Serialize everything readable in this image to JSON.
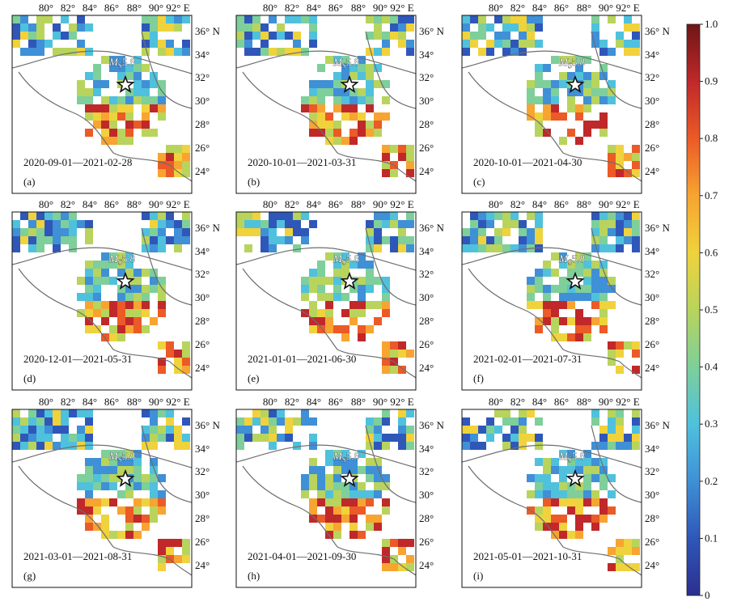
{
  "figure": {
    "lon_ticks": [
      "80°",
      "82°",
      "84°",
      "86°",
      "88°",
      "90°",
      "92° E"
    ],
    "lat_ticks": [
      "36° N",
      "34°",
      "32°",
      "30°",
      "28°",
      "26°",
      "24°"
    ],
    "magnitude_label": "MS5.8",
    "magnitude_main": "M",
    "magnitude_sub": "S",
    "magnitude_value": "5.8",
    "panels": [
      {
        "label": "(a)",
        "date_range": "2020-09-01—2021-02-28"
      },
      {
        "label": "(b)",
        "date_range": "2020-10-01—2021-03-31"
      },
      {
        "label": "(c)",
        "date_range": "2020-10-01—2021-04-30"
      },
      {
        "label": "(d)",
        "date_range": "2020-12-01—2021-05-31"
      },
      {
        "label": "(e)",
        "date_range": "2021-01-01—2021-06-30"
      },
      {
        "label": "(f)",
        "date_range": "2021-02-01—2021-07-31"
      },
      {
        "label": "(g)",
        "date_range": "2021-03-01—2021-08-31"
      },
      {
        "label": "(h)",
        "date_range": "2021-04-01—2021-09-30"
      },
      {
        "label": "(i)",
        "date_range": "2021-05-01—2021-10-31"
      }
    ],
    "colorbar": {
      "ticks": [
        "1.0",
        "0.9",
        "0.8",
        "0.7",
        "0.6",
        "0.5",
        "0.4",
        "0.3",
        "0.2",
        "0.1",
        "0"
      ],
      "min": 0,
      "max": 1,
      "colors": [
        "#2b2f8f",
        "#2f57b9",
        "#3f90d6",
        "#4fc1dd",
        "#7ecf9a",
        "#b8d45c",
        "#f0d23c",
        "#f7a431",
        "#eb5a27",
        "#c0282a",
        "#6e1616"
      ]
    }
  }
}
